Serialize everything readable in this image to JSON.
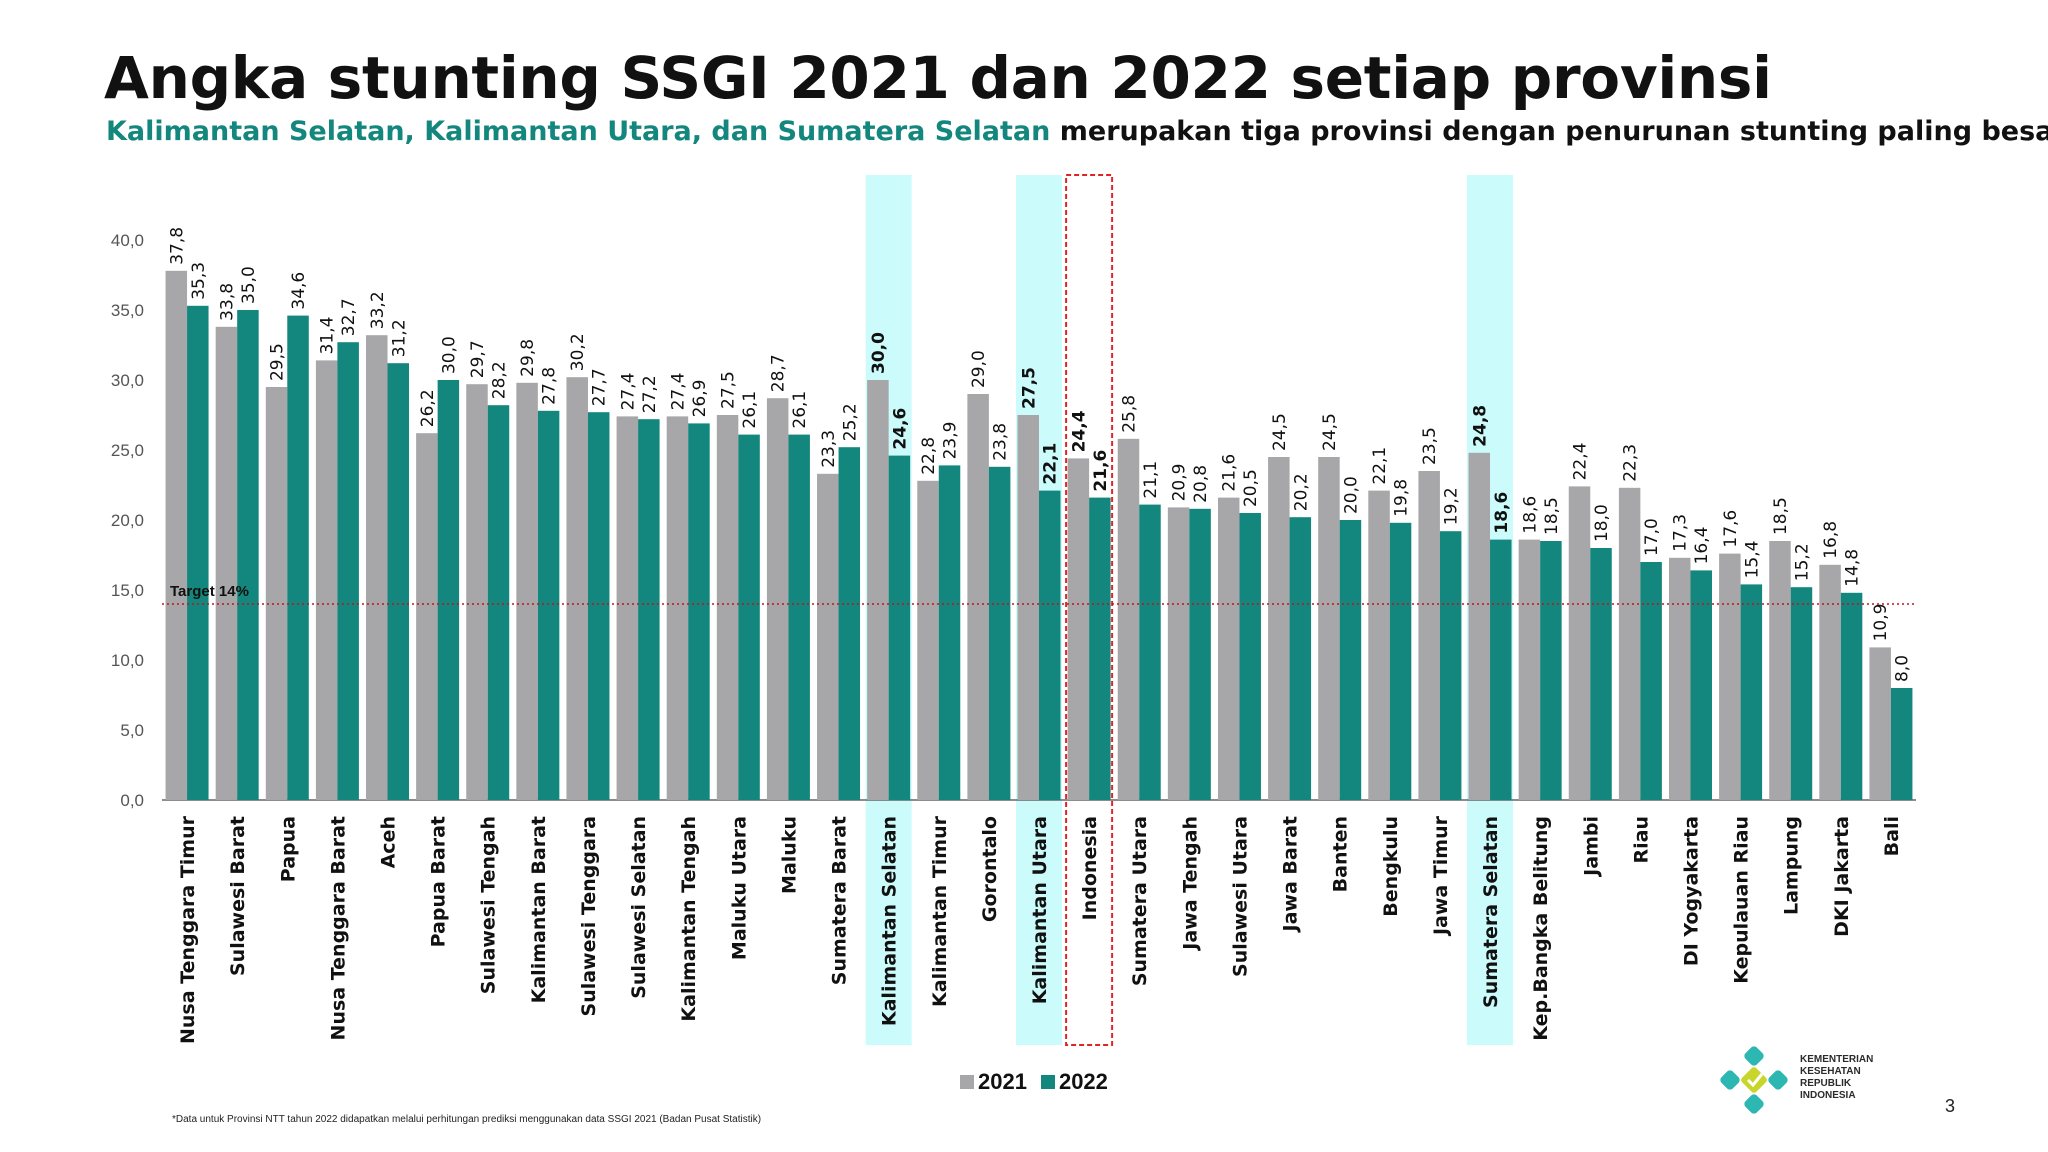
{
  "title": "Angka stunting SSGI 2021 dan 2022 setiap provinsi",
  "subtitle": {
    "highlight": "Kalimantan Selatan, Kalimantan Utara, dan Sumatera Selatan",
    "rest": " merupakan tiga provinsi dengan penurunan stunting paling besar"
  },
  "colors": {
    "y2021": "#a7a7a9",
    "y2022": "#13877d",
    "highlight_band": "#ccfbfc",
    "indonesia_box": "#e02424",
    "target_line": "#c0141e"
  },
  "chart_data": {
    "type": "bar",
    "categories": [
      "Nusa Tenggara Timur",
      "Sulawesi Barat",
      "Papua",
      "Nusa Tenggara Barat",
      "Aceh",
      "Papua Barat",
      "Sulawesi Tengah",
      "Kalimantan Barat",
      "Sulawesi Tenggara",
      "Sulawesi Selatan",
      "Kalimantan Tengah",
      "Maluku Utara",
      "Maluku",
      "Sumatera Barat",
      "Kalimantan Selatan",
      "Kalimantan Timur",
      "Gorontalo",
      "Kalimantan Utara",
      "Indonesia",
      "Sumatera Utara",
      "Jawa Tengah",
      "Sulawesi Utara",
      "Jawa Barat",
      "Banten",
      "Bengkulu",
      "Jawa Timur",
      "Sumatera Selatan",
      "Kep.Bangka Belitung",
      "Jambi",
      "Riau",
      "DI Yogyakarta",
      "Kepulauan Riau",
      "Lampung",
      "DKI Jakarta",
      "Bali"
    ],
    "series": [
      {
        "name": "2021",
        "values": [
          37.8,
          33.8,
          29.5,
          31.4,
          33.2,
          26.2,
          29.7,
          29.8,
          30.2,
          27.4,
          27.4,
          27.5,
          28.7,
          23.3,
          30.0,
          22.8,
          29.0,
          27.5,
          24.4,
          25.8,
          20.9,
          21.6,
          24.5,
          24.5,
          22.1,
          23.5,
          24.8,
          18.6,
          22.4,
          22.3,
          17.3,
          17.6,
          18.5,
          16.8,
          10.9
        ]
      },
      {
        "name": "2022",
        "values": [
          35.3,
          35.0,
          34.6,
          32.7,
          31.2,
          30.0,
          28.2,
          27.8,
          27.7,
          27.2,
          26.9,
          26.1,
          26.1,
          25.2,
          24.6,
          23.9,
          23.8,
          22.1,
          21.6,
          21.1,
          20.8,
          20.5,
          20.2,
          20.0,
          19.8,
          19.2,
          18.6,
          18.5,
          18.0,
          17.0,
          16.4,
          15.4,
          15.2,
          14.8,
          8.0
        ]
      }
    ],
    "value_labels": {
      "2021": [
        "37,8",
        "33,8",
        "29,5",
        "31,4",
        "33,2",
        "26,2",
        "29,7",
        "29,8",
        "30,2",
        "27,4",
        "27,4",
        "27,5",
        "28,7",
        "23,3",
        "30,0",
        "22,8",
        "29,0",
        "27,5",
        "24,4",
        "25,8",
        "20,9",
        "21,6",
        "24,5",
        "24,5",
        "22,1",
        "23,5",
        "24,8",
        "18,6",
        "22,4",
        "22,3",
        "17,3",
        "17,6",
        "18,5",
        "16,8",
        "10,9"
      ],
      "2022": [
        "35,3",
        "35,0",
        "34,6",
        "32,7",
        "31,2",
        "30,0",
        "28,2",
        "27,8",
        "27,7",
        "27,2",
        "26,9",
        "26,1",
        "26,1",
        "25,2",
        "24,6",
        "23,9",
        "23,8",
        "22,1",
        "21,6",
        "21,1",
        "20,8",
        "20,5",
        "20,2",
        "20,0",
        "19,8",
        "19,2",
        "18,6",
        "18,5",
        "18,0",
        "17,0",
        "16,4",
        "15,4",
        "15,2",
        "14,8",
        "8,0"
      ]
    },
    "y_ticks": [
      "0,0",
      "5,0",
      "10,0",
      "15,0",
      "20,0",
      "25,0",
      "30,0",
      "35,0",
      "40,0"
    ],
    "ylim": [
      0,
      40
    ],
    "target": {
      "value": 14,
      "label": "Target 14%"
    },
    "highlighted": [
      "Kalimantan Selatan",
      "Kalimantan Utara",
      "Sumatera Selatan"
    ],
    "boxed": "Indonesia",
    "legend": [
      "2021",
      "2022"
    ],
    "legend_position": "bottom-center"
  },
  "footnote": "*Data untuk Provinsi NTT tahun 2022 didapatkan melalui perhitungan prediksi menggunakan data SSGI 2021 (Badan Pusat Statistik)",
  "page_number": "3",
  "logo": {
    "text_lines": [
      "KEMENTERIAN",
      "KESEHATAN",
      "REPUBLIK",
      "INDONESIA"
    ]
  }
}
